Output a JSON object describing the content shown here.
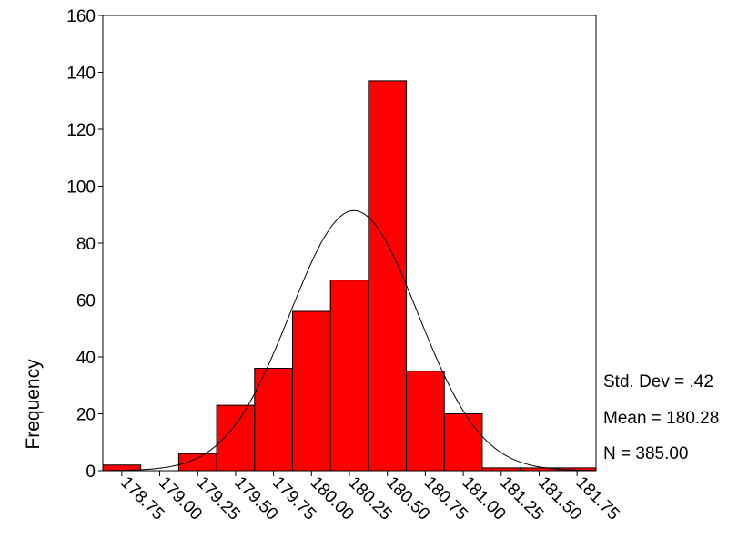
{
  "chart_data": {
    "type": "bar",
    "subtype": "histogram",
    "ylabel": "Frequency",
    "xlabel": "",
    "ylim": [
      0,
      160
    ],
    "yticks": [
      0,
      20,
      40,
      60,
      80,
      100,
      120,
      140,
      160
    ],
    "xlim": [
      178.625,
      181.875
    ],
    "xticks": [
      "178.75",
      "179.00",
      "179.25",
      "179.50",
      "179.75",
      "180.00",
      "180.25",
      "180.50",
      "180.75",
      "181.00",
      "181.25",
      "181.50",
      "181.75"
    ],
    "bins": [
      {
        "center": 178.75,
        "value": 2
      },
      {
        "center": 179.0,
        "value": 0
      },
      {
        "center": 179.25,
        "value": 6
      },
      {
        "center": 179.5,
        "value": 23
      },
      {
        "center": 179.75,
        "value": 36
      },
      {
        "center": 180.0,
        "value": 56
      },
      {
        "center": 180.25,
        "value": 67
      },
      {
        "center": 180.5,
        "value": 137
      },
      {
        "center": 180.75,
        "value": 35
      },
      {
        "center": 181.0,
        "value": 20
      },
      {
        "center": 181.25,
        "value": 1
      },
      {
        "center": 181.5,
        "value": 1
      },
      {
        "center": 181.75,
        "value": 1
      }
    ],
    "bar_color": "#ff0000",
    "normal_curve": {
      "mean": 180.28,
      "std_dev": 0.42,
      "n": 385,
      "bin_width": 0.25
    },
    "grid": false,
    "legend": "none"
  },
  "stats": {
    "std_dev": "Std. Dev = .42",
    "mean": "Mean = 180.28",
    "n": "N = 385.00"
  }
}
